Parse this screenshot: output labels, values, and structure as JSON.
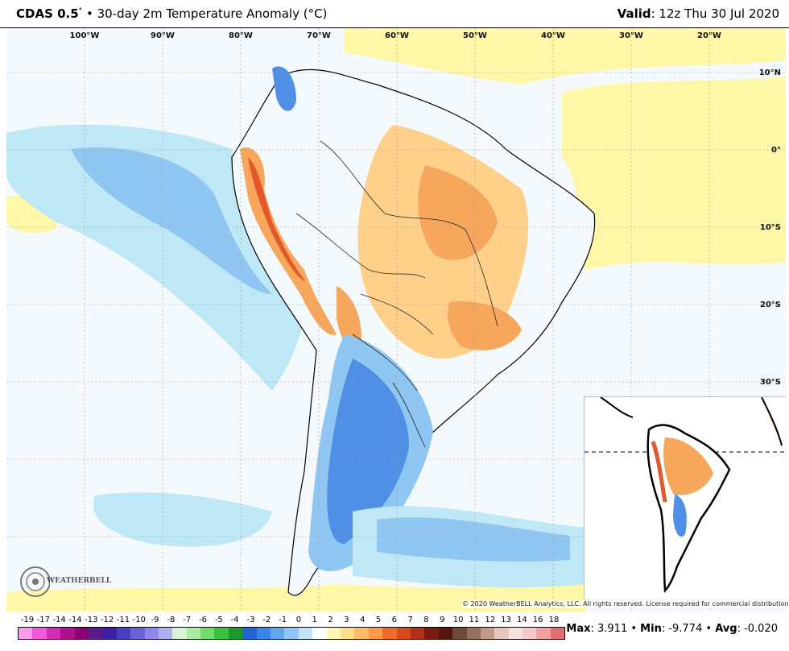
{
  "header": {
    "model": "CDAS 0.5",
    "degree_mark": "°",
    "separator": "•",
    "product": "30-day 2m Temperature Anomaly (°C)",
    "valid_label": "Valid",
    "valid_time": ": 12z Thu 30 Jul 2020"
  },
  "map": {
    "lon_labels": [
      "100°W",
      "90°W",
      "80°W",
      "70°W",
      "60°W",
      "50°W",
      "40°W",
      "30°W",
      "20°W"
    ],
    "lat_labels": [
      "10°N",
      "0°",
      "10°S",
      "20°S",
      "30°S"
    ]
  },
  "copyright": "© 2020 WeatherBELL Analytics, LLC. All rights reserved. License required for commercial distribution.",
  "logo": {
    "text": "WEATHERBELL"
  },
  "colorbar": {
    "labels": [
      "-19",
      "-17",
      "-14",
      "-14",
      "-13",
      "-12",
      "-11",
      "-10",
      "-9",
      "-8",
      "-7",
      "-6",
      "-5",
      "-4",
      "-3",
      "-2",
      "-1",
      "0",
      "1",
      "2",
      "3",
      "4",
      "5",
      "6",
      "7",
      "8",
      "9",
      "10",
      "11",
      "12",
      "13",
      "14",
      "16",
      "18"
    ],
    "colors": [
      "#ff99ee",
      "#f05ad6",
      "#d62ab8",
      "#b0108f",
      "#8a0070",
      "#5a1a8a",
      "#3b1fa0",
      "#4a3fc2",
      "#6a60d8",
      "#8f88e8",
      "#b0b0f0",
      "#d7f5d4",
      "#a8eca0",
      "#6fdc68",
      "#39c23a",
      "#1a9a28",
      "#2563d6",
      "#3a86ea",
      "#62a6f0",
      "#8fc4f5",
      "#bfe4f8",
      "#ffffff",
      "#fff6b5",
      "#ffdd8a",
      "#ffbb66",
      "#ff9944",
      "#f26b2a",
      "#d94a1a",
      "#b0301a",
      "#7a1a10",
      "#5a1410",
      "#6e4a3a",
      "#9a6e5c",
      "#c29a88",
      "#e4c6ba",
      "#f4e2dc",
      "#f6c8c8",
      "#f0a0a0",
      "#e07070"
    ],
    "band_colors": {
      "blue_light": "#bfe8f6",
      "blue_mid": "#8fc6f2",
      "blue_deep": "#4f8fe6",
      "yellow": "#fff7a8",
      "orange_light": "#ffd08a",
      "orange": "#f7a75c",
      "red": "#e2582a"
    }
  },
  "stats": {
    "max_label": "Max",
    "max_value": ": 3.911",
    "min_label": "Min",
    "min_value": ": -9.774",
    "avg_label": "Avg",
    "avg_value": ": -0.020",
    "sep": " • "
  }
}
